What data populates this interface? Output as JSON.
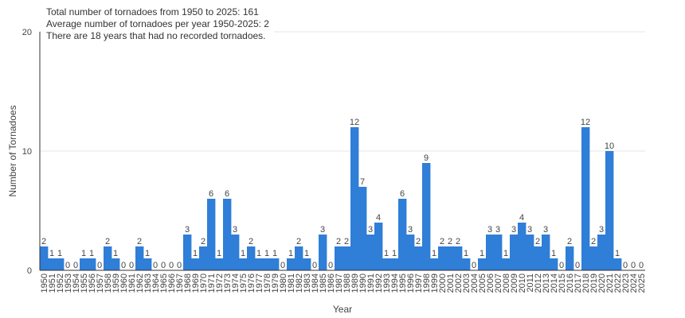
{
  "notes": [
    "Total number of tornadoes from 1950 to 2025: 161",
    "Average number of tornadoes per year 1950-2025: 2",
    "There are 18 years that had no recorded tornadoes."
  ],
  "colors": {
    "bar": "#2f7ed8",
    "grid": "#e6e6e6",
    "axis": "#333333",
    "text": "#444444"
  },
  "chart_data": {
    "type": "bar",
    "xlabel": "Year",
    "ylabel": "Number of Tornadoes",
    "ylim": [
      0,
      20
    ],
    "yticks": [
      0,
      10,
      20
    ],
    "grid": true,
    "categories": [
      "1950",
      "1951",
      "1952",
      "1953",
      "1954",
      "1955",
      "1956",
      "1957",
      "1958",
      "1959",
      "1960",
      "1961",
      "1962",
      "1963",
      "1964",
      "1965",
      "1966",
      "1967",
      "1968",
      "1969",
      "1970",
      "1971",
      "1972",
      "1973",
      "1974",
      "1975",
      "1976",
      "1977",
      "1978",
      "1979",
      "1980",
      "1981",
      "1982",
      "1983",
      "1984",
      "1985",
      "1986",
      "1987",
      "1988",
      "1989",
      "1990",
      "1991",
      "1992",
      "1993",
      "1994",
      "1995",
      "1996",
      "1997",
      "1998",
      "1999",
      "2000",
      "2001",
      "2002",
      "2003",
      "2004",
      "2005",
      "2006",
      "2007",
      "2008",
      "2009",
      "2010",
      "2011",
      "2012",
      "2013",
      "2014",
      "2015",
      "2016",
      "2017",
      "2018",
      "2019",
      "2020",
      "2021",
      "2022",
      "2023",
      "2024",
      "2025"
    ],
    "values": [
      2,
      1,
      1,
      0,
      0,
      1,
      1,
      0,
      2,
      1,
      0,
      0,
      2,
      1,
      0,
      0,
      0,
      0,
      3,
      1,
      2,
      6,
      1,
      6,
      3,
      1,
      2,
      1,
      1,
      1,
      0,
      1,
      2,
      1,
      0,
      3,
      0,
      2,
      2,
      12,
      7,
      3,
      4,
      1,
      1,
      6,
      3,
      2,
      9,
      1,
      2,
      2,
      2,
      1,
      0,
      1,
      3,
      3,
      1,
      3,
      4,
      3,
      2,
      3,
      1,
      0,
      2,
      0,
      12,
      2,
      3,
      10,
      1,
      0,
      0,
      0
    ]
  }
}
